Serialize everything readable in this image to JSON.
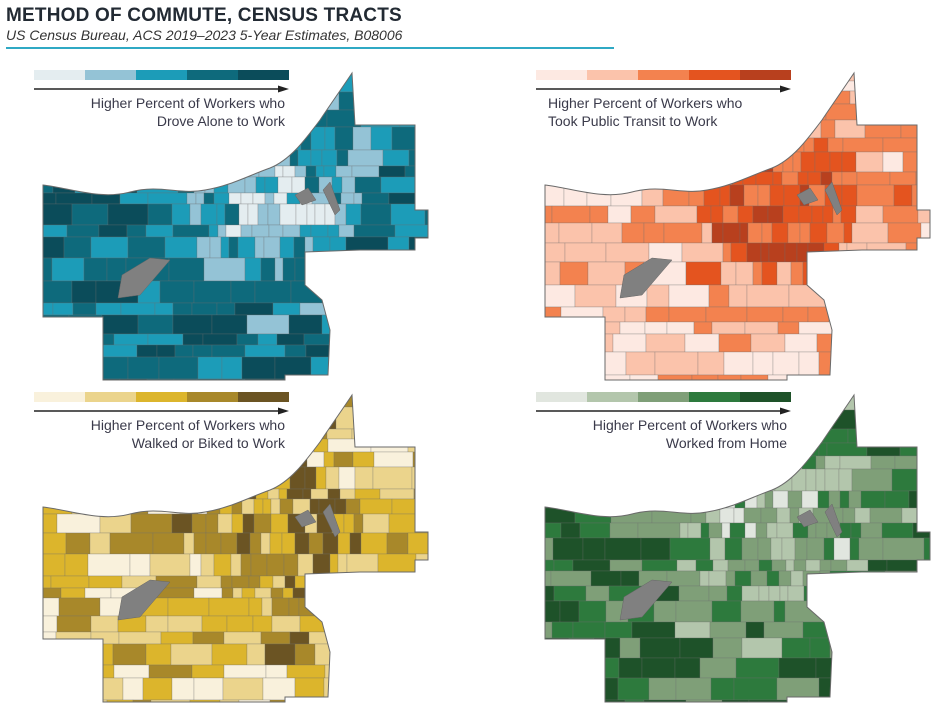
{
  "header": {
    "title": "METHOD OF COMMUTE, CENSUS TRACTS",
    "subtitle": "US Census Bureau, ACS 2019–2023 5-Year Estimates, B08006",
    "rule_color": "#2fa9c4"
  },
  "chart_data": [
    {
      "type": "choropleth",
      "title": "Higher Percent of Workers who Drove Alone to Work",
      "legend_direction": "low to high (left to right)",
      "classes": 5,
      "colors": [
        "#e4edf0",
        "#94c3d6",
        "#1c9cb8",
        "#0e6a7c",
        "#0b4c5a"
      ],
      "no_data_color": "#808080"
    },
    {
      "type": "choropleth",
      "title": "Higher Percent of Workers who Took Public Transit to Work",
      "legend_direction": "low to high (left to right)",
      "classes": 5,
      "colors": [
        "#fde9e2",
        "#fbc3ab",
        "#f3824f",
        "#e4541f",
        "#b8401e"
      ],
      "no_data_color": "#808080"
    },
    {
      "type": "choropleth",
      "title": "Higher Percent of Workers who Walked or Biked to Work",
      "legend_direction": "low to high (left to right)",
      "classes": 5,
      "colors": [
        "#f9f1dc",
        "#ebd48c",
        "#dcb52c",
        "#a8882a",
        "#6b5423"
      ],
      "no_data_color": "#808080"
    },
    {
      "type": "choropleth",
      "title": "Higher Percent of Workers who Worked from Home",
      "legend_direction": "low to high (left to right)",
      "classes": 5,
      "colors": [
        "#e1e6df",
        "#b3c6ac",
        "#7f9f78",
        "#2d7a3d",
        "#1e5229"
      ],
      "no_data_color": "#808080"
    }
  ],
  "panels": [
    {
      "line1": "Higher Percent of Workers who",
      "line2": "Drove Alone to Work"
    },
    {
      "line1": "Higher Percent of Workers who",
      "line2": "Took Public Transit to Work"
    },
    {
      "line1": "Higher Percent of Workers who",
      "line2": "Walked or Biked to Work"
    },
    {
      "line1": "Higher Percent of Workers who",
      "line2": "Worked from Home"
    }
  ]
}
